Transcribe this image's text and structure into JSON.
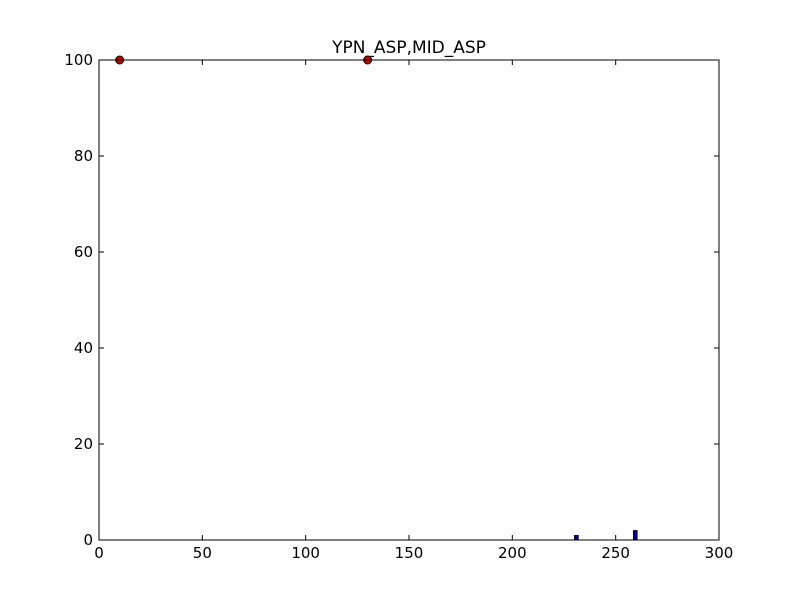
{
  "chart_data": {
    "type": "scatter",
    "title": "YPN_ASP,MID_ASP",
    "xlabel": "",
    "ylabel": "",
    "xlim": [
      0,
      300
    ],
    "ylim": [
      0,
      100
    ],
    "x_ticks": [
      0,
      50,
      100,
      150,
      200,
      250,
      300
    ],
    "y_ticks": [
      0,
      20,
      40,
      60,
      80,
      100
    ],
    "grid": false,
    "colors": {
      "points": "#cc0000",
      "bars": "#000080",
      "axes": "#000000",
      "background": "#ffffff"
    },
    "series": [
      {
        "type": "scatter",
        "points": [
          {
            "x": 10,
            "y": 100
          },
          {
            "x": 130,
            "y": 100
          }
        ]
      },
      {
        "type": "bar",
        "bar_width": 2,
        "bars": [
          {
            "x": 231,
            "y": 1
          },
          {
            "x": 259.5,
            "y": 2
          }
        ]
      }
    ]
  }
}
